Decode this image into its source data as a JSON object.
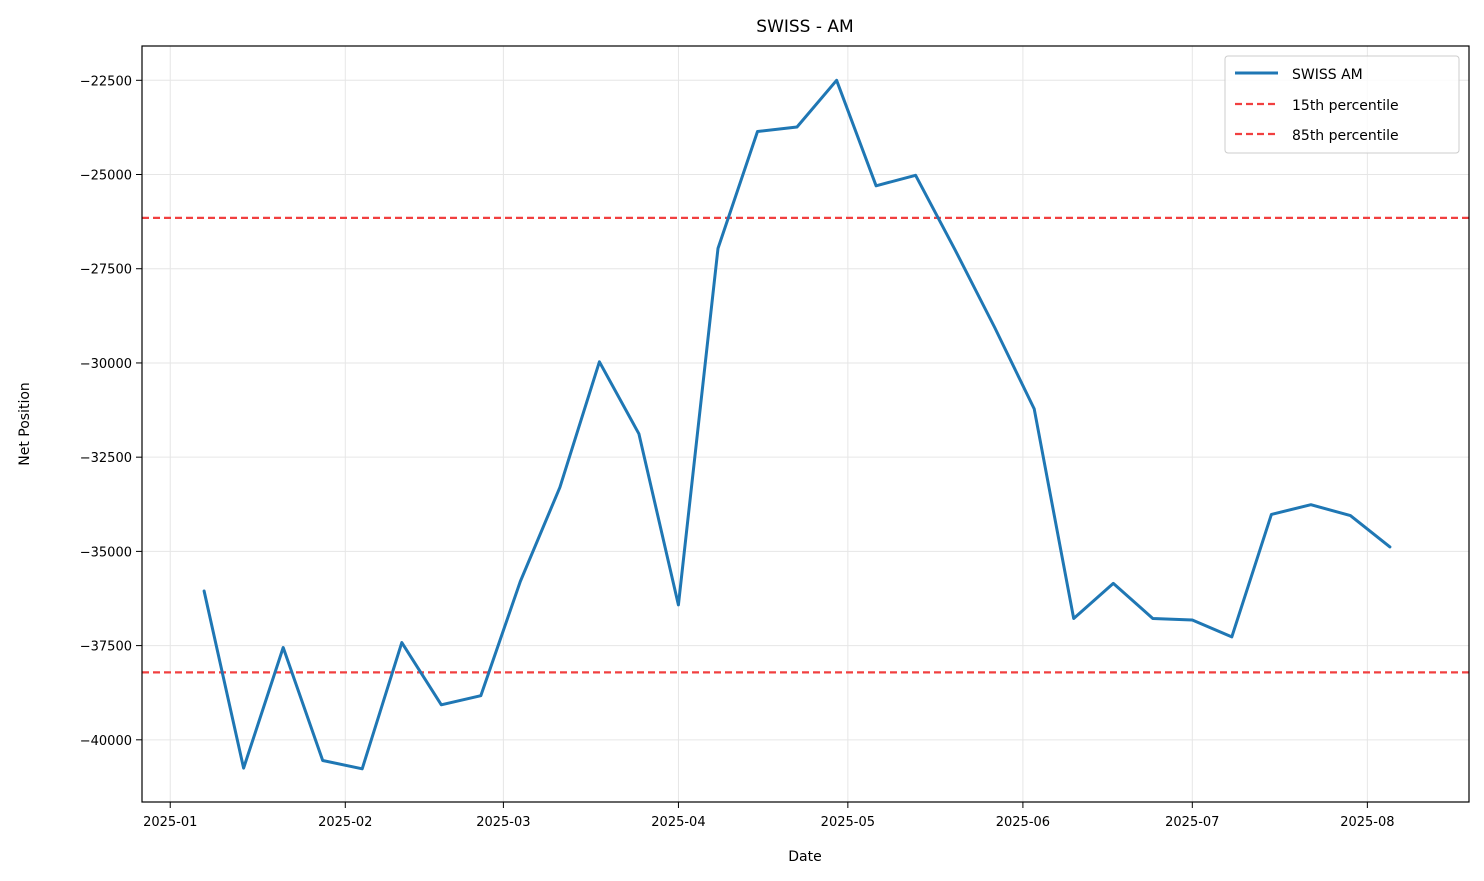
{
  "chart_data": {
    "type": "line",
    "title": "SWISS - AM",
    "xlabel": "Date",
    "ylabel": "Net Position",
    "x_ticks": [
      "2025-01",
      "2025-02",
      "2025-03",
      "2025-04",
      "2025-05",
      "2025-06",
      "2025-07",
      "2025-08"
    ],
    "y_ticks": [
      -22500,
      -25000,
      -27500,
      -30000,
      -32500,
      -35000,
      -37500,
      -40000
    ],
    "y_tick_labels": [
      "−22500",
      "−25000",
      "−27500",
      "−30000",
      "−32500",
      "−35000",
      "−37500",
      "−40000"
    ],
    "xlim": [
      "2024-12-27",
      "2025-08-19"
    ],
    "ylim": [
      -41650,
      -21590
    ],
    "grid": true,
    "legend_position": "top-right",
    "series": [
      {
        "name": "SWISS AM",
        "color": "#1f77b4",
        "x": [
          "2025-01-07",
          "2025-01-14",
          "2025-01-21",
          "2025-01-28",
          "2025-02-04",
          "2025-02-11",
          "2025-02-18",
          "2025-02-25",
          "2025-03-04",
          "2025-03-11",
          "2025-03-18",
          "2025-03-25",
          "2025-04-01",
          "2025-04-08",
          "2025-04-15",
          "2025-04-22",
          "2025-04-29",
          "2025-05-06",
          "2025-05-13",
          "2025-05-20",
          "2025-05-27",
          "2025-06-03",
          "2025-06-10",
          "2025-06-17",
          "2025-06-24",
          "2025-07-01",
          "2025-07-08",
          "2025-07-15",
          "2025-07-22",
          "2025-07-29",
          "2025-08-05"
        ],
        "y": [
          -36050,
          -40750,
          -37550,
          -40550,
          -40770,
          -37420,
          -39070,
          -38830,
          -35800,
          -33300,
          -29970,
          -31880,
          -36420,
          -26960,
          -23860,
          -23740,
          -22500,
          -25300,
          -25020,
          -27000,
          -29060,
          -31220,
          -36780,
          -35850,
          -36780,
          -36820,
          -37270,
          -34020,
          -33760,
          -34050,
          -34880
        ]
      }
    ],
    "reference_lines": [
      {
        "name": "15th percentile",
        "value": -38210,
        "color": "#f14040",
        "style": "dashed"
      },
      {
        "name": "85th percentile",
        "value": -26150,
        "color": "#f14040",
        "style": "dashed"
      }
    ]
  }
}
